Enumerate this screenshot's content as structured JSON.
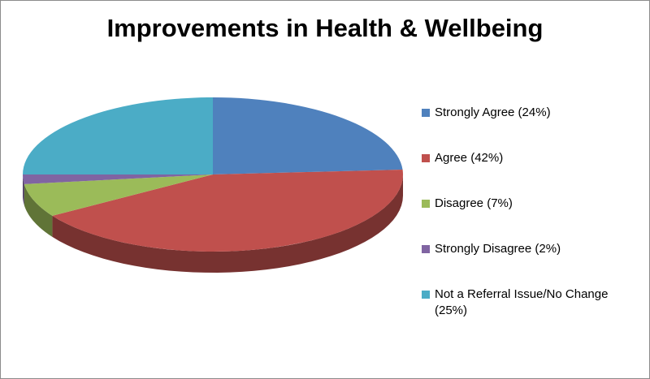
{
  "chart_data": {
    "type": "pie",
    "title": "Improvements in Health & Wellbeing",
    "categories": [
      "Strongly Agree",
      "Agree",
      "Disagree",
      "Strongly Disagree",
      "Not a Referral Issue/No Change"
    ],
    "values": [
      24,
      42,
      7,
      2,
      25
    ],
    "legend_labels": [
      "Strongly Agree (24%)",
      "Agree (42%)",
      "Disagree (7%)",
      "Strongly Disagree (2%)",
      "Not a Referral Issue/No Change (25%)"
    ],
    "colors": [
      "#4F81BD",
      "#C0504D",
      "#9BBB59",
      "#8064A2",
      "#4BACC6"
    ],
    "legend_position": "right",
    "style": "3d"
  }
}
